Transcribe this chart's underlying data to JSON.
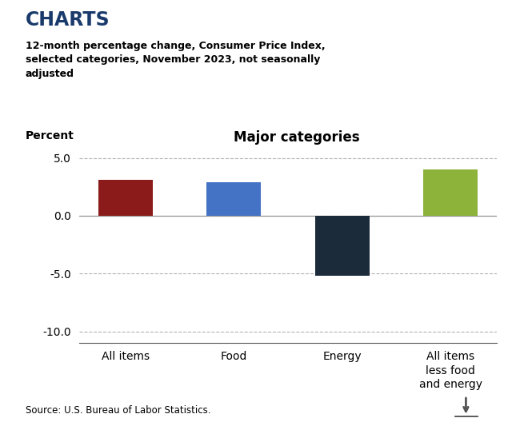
{
  "title_main": "CHARTS",
  "subtitle": "12-month percentage change, Consumer Price Index,\nselected categories, November 2023, not seasonally\nadjusted",
  "chart_title": "Major categories",
  "ylabel": "Percent",
  "categories": [
    "All items",
    "Food",
    "Energy",
    "All items\nless food\nand energy"
  ],
  "values": [
    3.1,
    2.9,
    -5.2,
    4.0
  ],
  "bar_colors": [
    "#8B1A1A",
    "#4472C4",
    "#1C2B3A",
    "#8DB33A"
  ],
  "ylim": [
    -11.0,
    6.5
  ],
  "yticks": [
    -10.0,
    -5.0,
    0.0,
    5.0
  ],
  "ytick_labels": [
    "-10.0",
    "-5.0",
    "0.0",
    "5.0"
  ],
  "source": "Source: U.S. Bureau of Labor Statistics.",
  "bg_color": "#FFFFFF",
  "title_color": "#1A3A6B",
  "grid_color": "#AAAAAA",
  "bar_width": 0.5
}
